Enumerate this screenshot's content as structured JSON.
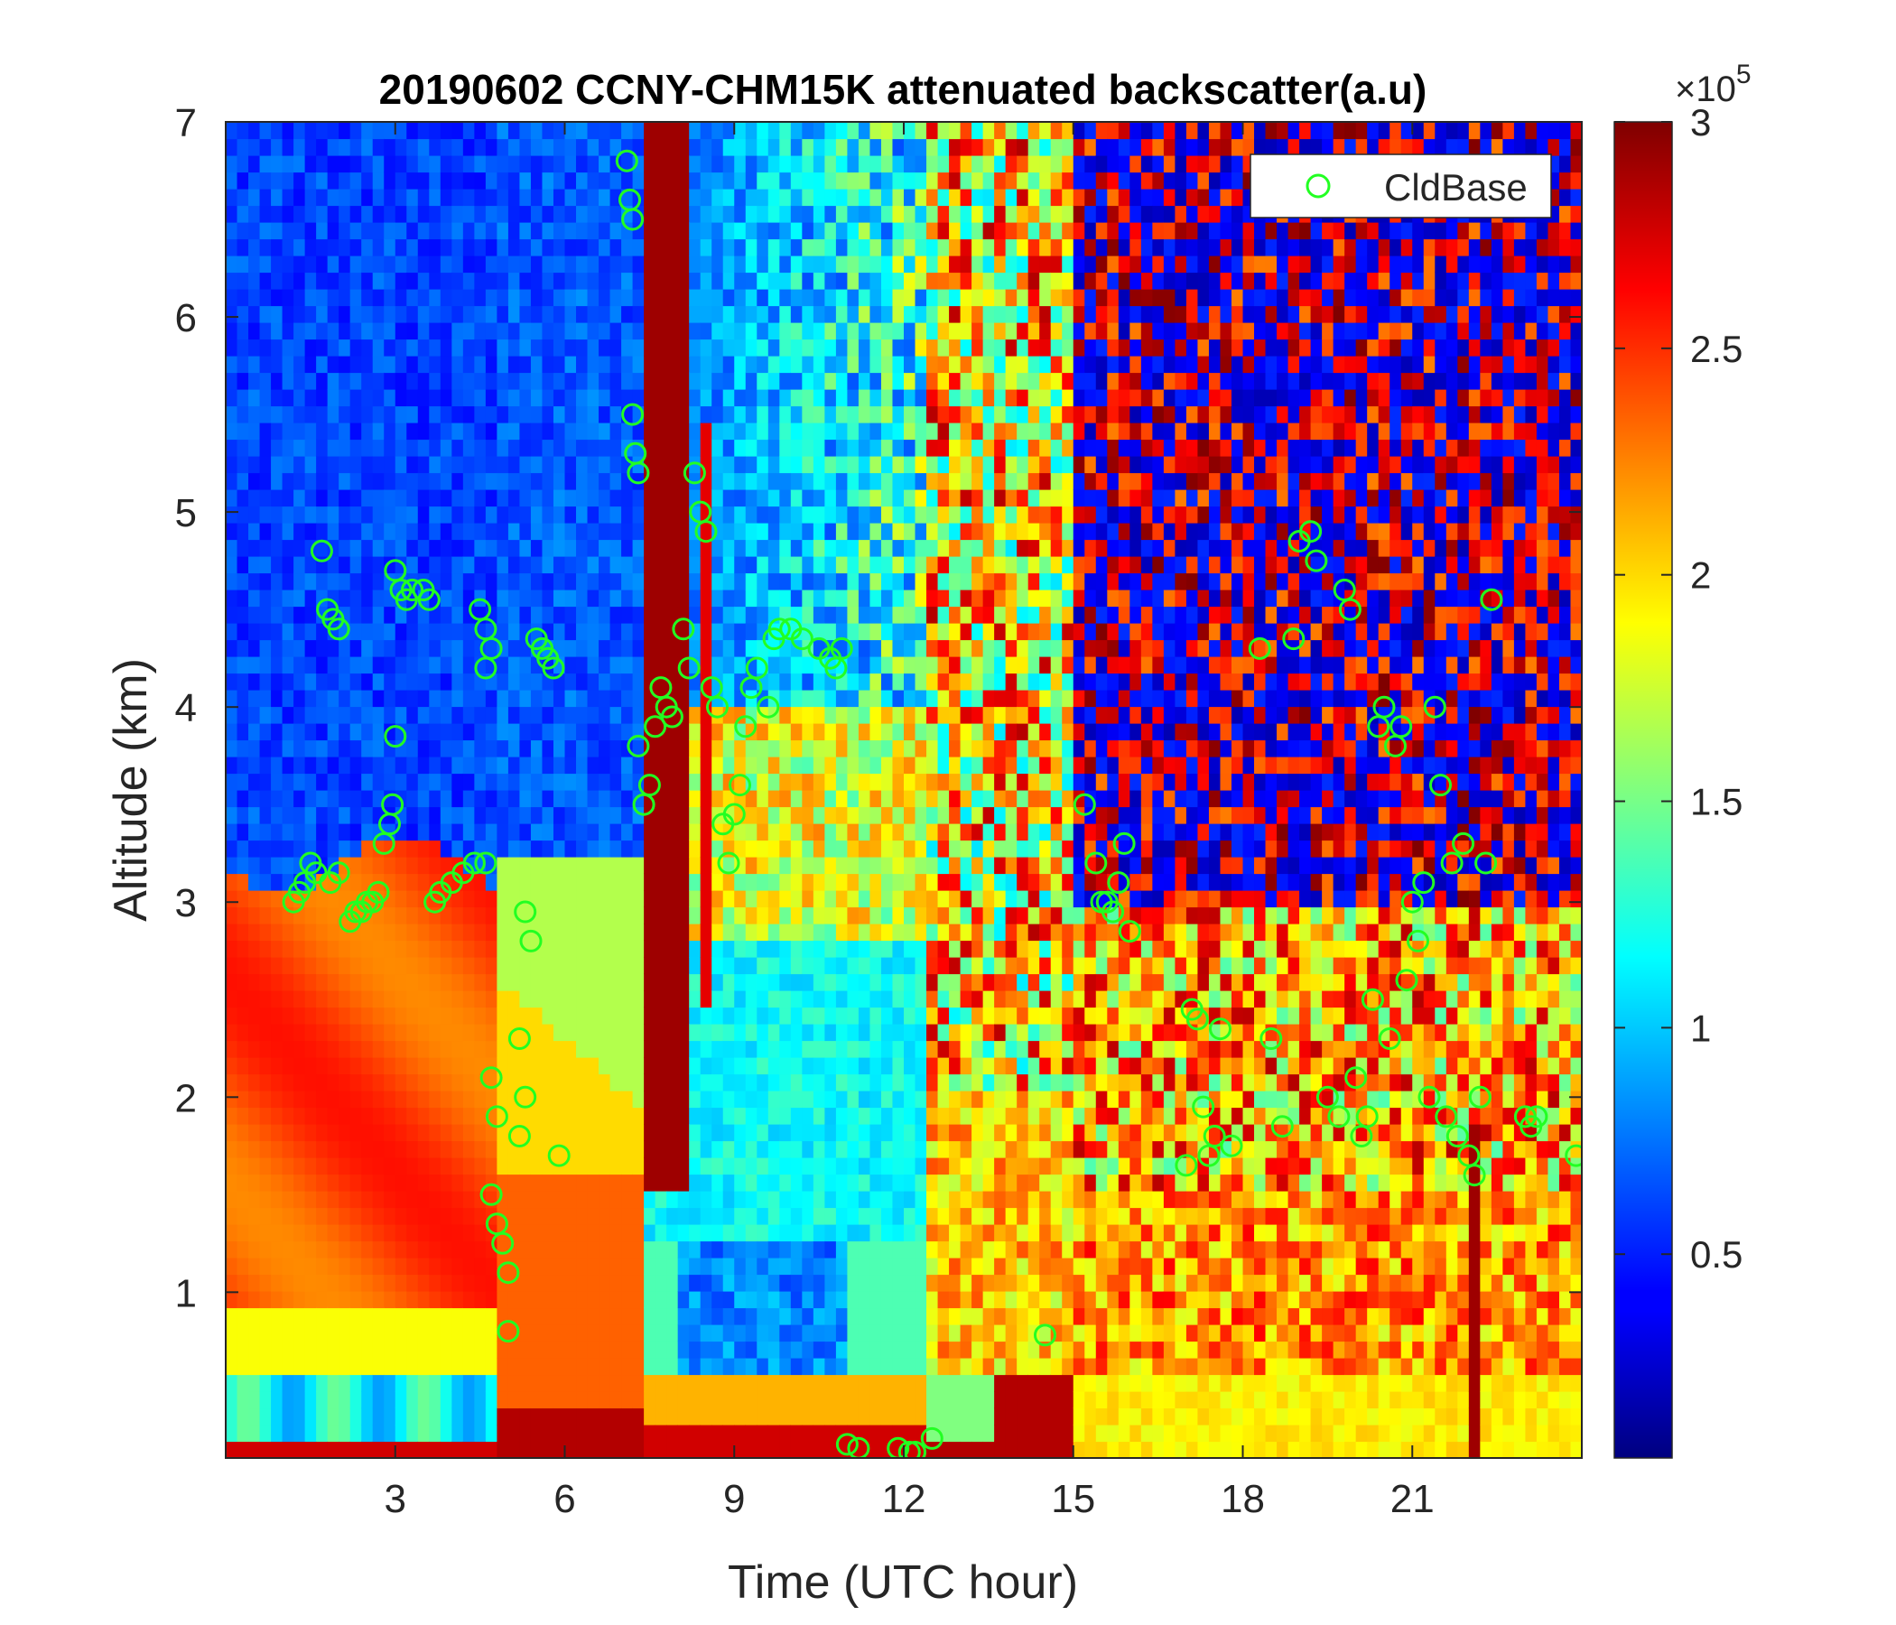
{
  "chart_data": {
    "type": "heatmap",
    "title": "20190602 CCNY-CHM15K attenuated backscatter(a.u)",
    "xlabel": "Time (UTC hour)",
    "ylabel": "Altitude (km)",
    "xlim": [
      0,
      24
    ],
    "ylim": [
      0.15,
      7
    ],
    "x_ticks": [
      3,
      6,
      9,
      12,
      15,
      18,
      21
    ],
    "x_tick_labels": [
      "3",
      "6",
      "9",
      "12",
      "15",
      "18",
      "21"
    ],
    "y_ticks": [
      1,
      2,
      3,
      4,
      5,
      6,
      7
    ],
    "y_tick_labels": [
      "1",
      "2",
      "3",
      "4",
      "5",
      "6",
      "7"
    ],
    "colorbar": {
      "colormap": "jet",
      "clim": [
        5000,
        300000
      ],
      "ticks": [
        50000,
        100000,
        150000,
        200000,
        250000,
        300000
      ],
      "tick_labels": [
        "0.5",
        "1",
        "1.5",
        "2",
        "2.5",
        "3"
      ],
      "exponent_label": "×10",
      "exponent_power": "5"
    },
    "legend": {
      "entries": [
        "CldBase"
      ],
      "placement": "top-right"
    },
    "marker_color": "#22ff22",
    "series": [
      {
        "name": "CldBase",
        "type": "scatter",
        "points": [
          [
            1.2,
            3.0
          ],
          [
            1.3,
            3.05
          ],
          [
            1.4,
            3.1
          ],
          [
            1.5,
            3.2
          ],
          [
            1.6,
            3.15
          ],
          [
            1.7,
            4.8
          ],
          [
            1.8,
            4.5
          ],
          [
            1.9,
            4.45
          ],
          [
            2.0,
            4.4
          ],
          [
            1.85,
            3.1
          ],
          [
            2.0,
            3.15
          ],
          [
            2.2,
            2.9
          ],
          [
            2.3,
            2.95
          ],
          [
            2.4,
            2.95
          ],
          [
            2.5,
            3.0
          ],
          [
            2.6,
            3.0
          ],
          [
            2.7,
            3.05
          ],
          [
            2.8,
            3.3
          ],
          [
            2.9,
            3.4
          ],
          [
            2.95,
            3.5
          ],
          [
            3.0,
            4.7
          ],
          [
            3.0,
            3.85
          ],
          [
            3.1,
            4.6
          ],
          [
            3.2,
            4.55
          ],
          [
            3.3,
            4.6
          ],
          [
            3.5,
            4.6
          ],
          [
            3.6,
            4.55
          ],
          [
            3.7,
            3.0
          ],
          [
            3.8,
            3.05
          ],
          [
            4.0,
            3.1
          ],
          [
            4.2,
            3.15
          ],
          [
            4.4,
            3.2
          ],
          [
            4.6,
            3.2
          ],
          [
            4.5,
            4.5
          ],
          [
            4.6,
            4.4
          ],
          [
            4.7,
            4.3
          ],
          [
            4.6,
            4.2
          ],
          [
            4.7,
            2.1
          ],
          [
            4.8,
            1.9
          ],
          [
            4.7,
            1.5
          ],
          [
            4.8,
            1.35
          ],
          [
            4.9,
            1.25
          ],
          [
            5.0,
            1.1
          ],
          [
            5.0,
            0.8
          ],
          [
            5.2,
            2.3
          ],
          [
            5.3,
            2.0
          ],
          [
            5.2,
            1.8
          ],
          [
            5.3,
            2.95
          ],
          [
            5.4,
            2.8
          ],
          [
            5.5,
            4.35
          ],
          [
            5.6,
            4.3
          ],
          [
            5.7,
            4.25
          ],
          [
            5.8,
            4.2
          ],
          [
            5.9,
            1.7
          ],
          [
            7.1,
            6.8
          ],
          [
            7.15,
            6.6
          ],
          [
            7.2,
            6.5
          ],
          [
            7.2,
            5.5
          ],
          [
            7.25,
            5.3
          ],
          [
            7.3,
            5.2
          ],
          [
            7.3,
            3.8
          ],
          [
            7.4,
            3.5
          ],
          [
            7.5,
            3.6
          ],
          [
            7.6,
            3.9
          ],
          [
            7.7,
            4.1
          ],
          [
            7.8,
            4.0
          ],
          [
            7.9,
            3.95
          ],
          [
            8.1,
            4.4
          ],
          [
            8.2,
            4.2
          ],
          [
            8.3,
            5.2
          ],
          [
            8.4,
            5.0
          ],
          [
            8.5,
            4.9
          ],
          [
            8.6,
            4.1
          ],
          [
            8.7,
            4.0
          ],
          [
            8.8,
            3.4
          ],
          [
            8.9,
            3.2
          ],
          [
            9.0,
            3.45
          ],
          [
            9.1,
            3.6
          ],
          [
            9.2,
            3.9
          ],
          [
            9.3,
            4.1
          ],
          [
            9.4,
            4.2
          ],
          [
            9.6,
            4.0
          ],
          [
            9.7,
            4.35
          ],
          [
            9.8,
            4.4
          ],
          [
            10.0,
            4.4
          ],
          [
            10.2,
            4.35
          ],
          [
            10.5,
            4.3
          ],
          [
            10.7,
            4.25
          ],
          [
            10.8,
            4.2
          ],
          [
            10.9,
            4.3
          ],
          [
            11.0,
            0.22
          ],
          [
            11.2,
            0.2
          ],
          [
            11.9,
            0.2
          ],
          [
            12.1,
            0.18
          ],
          [
            12.2,
            0.18
          ],
          [
            12.5,
            0.25
          ],
          [
            14.5,
            0.78
          ],
          [
            15.2,
            3.5
          ],
          [
            15.4,
            3.2
          ],
          [
            15.5,
            3.0
          ],
          [
            15.6,
            3.0
          ],
          [
            15.7,
            2.95
          ],
          [
            15.8,
            3.1
          ],
          [
            15.9,
            3.3
          ],
          [
            16.0,
            2.85
          ],
          [
            17.0,
            1.65
          ],
          [
            17.1,
            2.45
          ],
          [
            17.2,
            2.4
          ],
          [
            17.3,
            1.95
          ],
          [
            17.4,
            1.7
          ],
          [
            17.5,
            1.8
          ],
          [
            17.6,
            2.35
          ],
          [
            17.8,
            1.75
          ],
          [
            18.3,
            4.3
          ],
          [
            18.5,
            2.3
          ],
          [
            18.7,
            1.85
          ],
          [
            18.9,
            4.35
          ],
          [
            19.0,
            4.85
          ],
          [
            19.2,
            4.9
          ],
          [
            19.3,
            4.75
          ],
          [
            19.5,
            2.0
          ],
          [
            19.7,
            1.9
          ],
          [
            19.8,
            4.6
          ],
          [
            19.9,
            4.5
          ],
          [
            20.0,
            2.1
          ],
          [
            20.1,
            1.8
          ],
          [
            20.2,
            1.9
          ],
          [
            20.3,
            2.5
          ],
          [
            20.4,
            3.9
          ],
          [
            20.5,
            4.0
          ],
          [
            20.6,
            2.3
          ],
          [
            20.7,
            3.8
          ],
          [
            20.8,
            3.9
          ],
          [
            20.9,
            2.6
          ],
          [
            21.0,
            3.0
          ],
          [
            21.1,
            2.8
          ],
          [
            21.2,
            3.1
          ],
          [
            21.3,
            2.0
          ],
          [
            21.4,
            4.0
          ],
          [
            21.5,
            3.6
          ],
          [
            21.6,
            1.9
          ],
          [
            21.7,
            3.2
          ],
          [
            21.8,
            1.8
          ],
          [
            21.9,
            3.3
          ],
          [
            22.0,
            1.7
          ],
          [
            22.1,
            1.6
          ],
          [
            22.2,
            2.0
          ],
          [
            22.3,
            3.2
          ],
          [
            22.4,
            4.55
          ],
          [
            23.0,
            1.9
          ],
          [
            23.1,
            1.85
          ],
          [
            23.2,
            1.9
          ],
          [
            23.9,
            1.7
          ]
        ]
      }
    ]
  }
}
